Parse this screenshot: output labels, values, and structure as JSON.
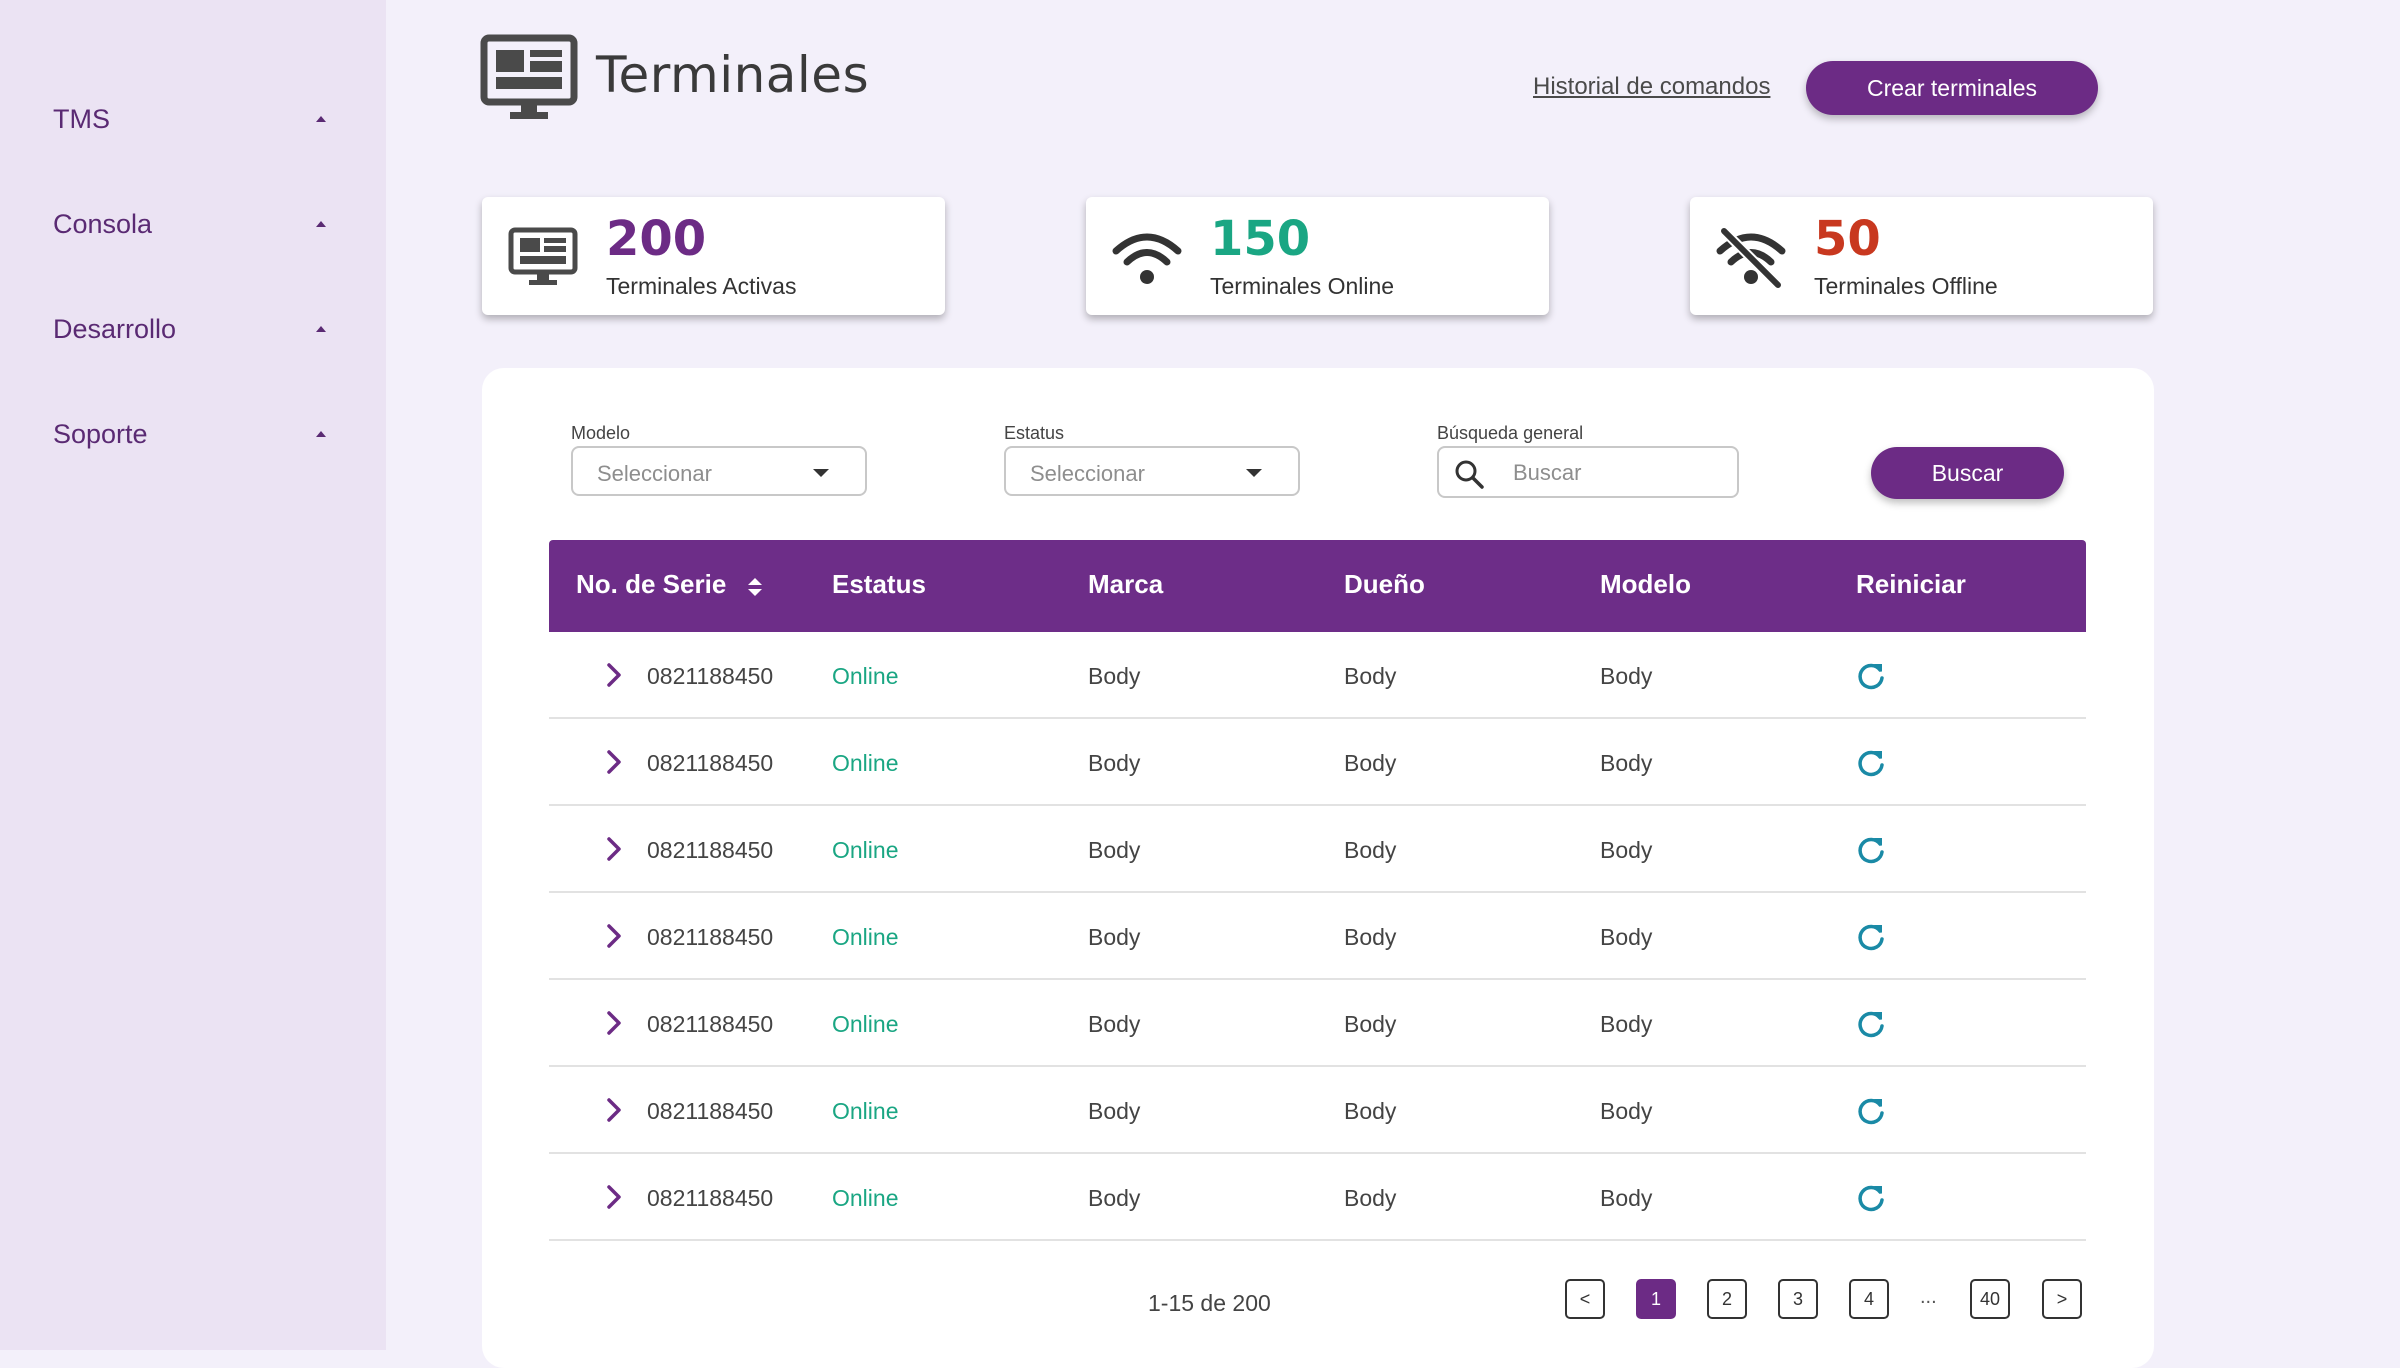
{
  "sidebar": {
    "items": [
      {
        "label": "TMS"
      },
      {
        "label": "Consola"
      },
      {
        "label": "Desarrollo"
      },
      {
        "label": "Soporte"
      }
    ]
  },
  "header": {
    "title": "Terminales",
    "history_link": "Historial de comandos",
    "create_button": "Crear terminales"
  },
  "stats": [
    {
      "value": "200",
      "caption": "Terminales Activas",
      "color": "#6c2b85",
      "icon": "monitor-icon"
    },
    {
      "value": "150",
      "caption": "Terminales Online",
      "color": "#1aa683",
      "icon": "wifi-icon"
    },
    {
      "value": "50",
      "caption": "Terminales Offline",
      "color": "#c8381f",
      "icon": "wifi-off-icon"
    }
  ],
  "filters": {
    "modelo": {
      "label": "Modelo",
      "placeholder": "Seleccionar"
    },
    "estatus": {
      "label": "Estatus",
      "placeholder": "Seleccionar"
    },
    "busqueda": {
      "label": "Búsqueda general",
      "placeholder": "Buscar"
    },
    "search_button": "Buscar"
  },
  "table": {
    "headers": [
      "No. de Serie",
      "Estatus",
      "Marca",
      "Dueño",
      "Modelo",
      "Reiniciar"
    ],
    "rows": [
      {
        "serie": "0821188450",
        "estatus": "Online",
        "marca": "Body",
        "dueno": "Body",
        "modelo": "Body"
      },
      {
        "serie": "0821188450",
        "estatus": "Online",
        "marca": "Body",
        "dueno": "Body",
        "modelo": "Body"
      },
      {
        "serie": "0821188450",
        "estatus": "Online",
        "marca": "Body",
        "dueno": "Body",
        "modelo": "Body"
      },
      {
        "serie": "0821188450",
        "estatus": "Online",
        "marca": "Body",
        "dueno": "Body",
        "modelo": "Body"
      },
      {
        "serie": "0821188450",
        "estatus": "Online",
        "marca": "Body",
        "dueno": "Body",
        "modelo": "Body"
      },
      {
        "serie": "0821188450",
        "estatus": "Online",
        "marca": "Body",
        "dueno": "Body",
        "modelo": "Body"
      },
      {
        "serie": "0821188450",
        "estatus": "Online",
        "marca": "Body",
        "dueno": "Body",
        "modelo": "Body"
      }
    ]
  },
  "pagination": {
    "info": "1-15 de 200",
    "prev": "<",
    "next": ">",
    "pages": [
      "1",
      "2",
      "3",
      "4"
    ],
    "ellipsis": "...",
    "last": "40",
    "current": "1"
  },
  "colors": {
    "primary": "#6c2b85",
    "online": "#1aa683",
    "offline": "#c8381f",
    "refresh": "#1a8aa6"
  }
}
